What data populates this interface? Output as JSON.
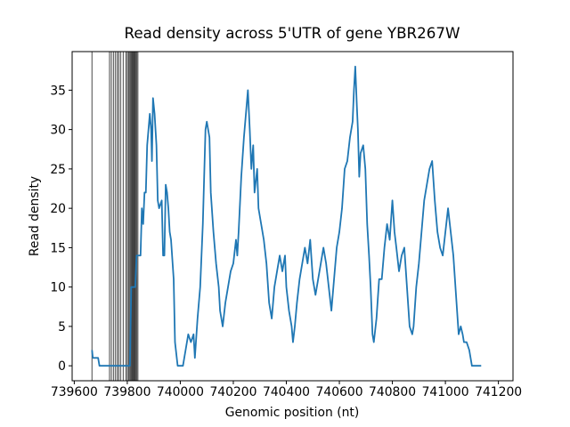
{
  "chart_data": {
    "type": "line",
    "title": "Read density across 5'UTR of gene YBR267W",
    "xlabel": "Genomic position (nt)",
    "ylabel": "Read density",
    "color": "#1f77b4",
    "vline_color": "#000000",
    "x": [
      739667,
      739670,
      739690,
      739695,
      739810,
      739815,
      739830,
      739835,
      739850,
      739855,
      739860,
      739865,
      739870,
      739875,
      739880,
      739885,
      739890,
      739893,
      739897,
      739903,
      739910,
      739915,
      739920,
      739930,
      739935,
      739940,
      739945,
      739950,
      739955,
      739960,
      739965,
      739975,
      739980,
      739990,
      740010,
      740020,
      740030,
      740040,
      740050,
      740055,
      740065,
      740075,
      740085,
      740090,
      740095,
      740100,
      740110,
      740115,
      740125,
      740135,
      740145,
      740150,
      740160,
      740170,
      740180,
      740190,
      740200,
      740210,
      740215,
      740220,
      740230,
      740240,
      740250,
      740255,
      740262,
      740268,
      740275,
      740280,
      740290,
      740295,
      740305,
      740315,
      740325,
      740335,
      740345,
      740355,
      740365,
      740375,
      740385,
      740395,
      740400,
      740410,
      740420,
      740425,
      740432,
      740440,
      740450,
      740460,
      740470,
      740480,
      740490,
      740500,
      740510,
      740520,
      740530,
      740540,
      740550,
      740560,
      740570,
      740580,
      740590,
      740600,
      740610,
      740620,
      740630,
      740640,
      740650,
      740655,
      740660,
      740666,
      740670,
      740675,
      740680,
      740690,
      740698,
      740705,
      740712,
      740718,
      740725,
      740730,
      740740,
      740750,
      740760,
      740770,
      740780,
      740790,
      740800,
      740808,
      740815,
      740825,
      740835,
      740845,
      740855,
      740865,
      740875,
      740880,
      740890,
      740900,
      740910,
      740920,
      740930,
      740940,
      740950,
      740960,
      740970,
      740980,
      740990,
      741000,
      741010,
      741020,
      741030,
      741040,
      741050,
      741058,
      741065,
      741070,
      741080,
      741090,
      741100,
      741135
    ],
    "values": [
      2,
      1,
      1,
      0,
      0,
      10,
      10,
      14,
      14,
      20,
      18,
      22,
      22,
      28,
      30,
      32,
      30,
      26,
      34,
      32,
      28,
      21,
      20,
      21,
      14,
      14,
      23,
      22,
      20,
      17,
      16,
      11,
      3,
      0,
      0,
      2,
      4,
      3,
      4,
      1,
      6,
      10,
      18,
      24,
      30,
      31,
      29,
      22,
      17,
      13,
      10,
      7,
      5,
      8,
      10,
      12,
      13,
      16,
      14,
      17,
      24,
      29,
      33,
      35,
      30,
      25,
      28,
      22,
      25,
      20,
      18,
      16,
      13,
      8,
      6,
      10,
      12,
      14,
      12,
      14,
      10,
      7,
      5,
      3,
      5,
      8,
      11,
      13,
      15,
      13,
      16,
      11,
      9,
      11,
      13,
      15,
      13,
      10,
      7,
      11,
      15,
      17,
      20,
      25,
      26,
      29,
      31,
      35,
      38,
      33,
      30,
      24,
      27,
      28,
      25,
      18,
      14,
      10,
      4,
      3,
      6,
      11,
      11,
      15,
      18,
      16,
      21,
      17,
      15,
      12,
      14,
      15,
      10,
      5,
      4,
      5,
      10,
      13,
      17,
      21,
      23,
      25,
      26,
      21,
      17,
      15,
      14,
      17,
      20,
      17,
      14,
      9,
      4,
      5,
      4,
      3,
      3,
      2,
      0,
      0
    ],
    "vlines": [
      739667,
      739733,
      739740,
      739748,
      739755,
      739762,
      739768,
      739775,
      739785,
      739795,
      739800,
      739805,
      739808,
      739812,
      739815,
      739818,
      739820,
      739823,
      739825,
      739828,
      739830,
      739833,
      739836,
      739840
    ],
    "xlim": [
      739592,
      741255
    ],
    "ylim": [
      -1.9,
      39.9
    ],
    "xticks": [
      739600,
      739800,
      740000,
      740200,
      740400,
      740600,
      740800,
      741000,
      741200
    ],
    "yticks": [
      0,
      5,
      10,
      15,
      20,
      25,
      30,
      35
    ]
  }
}
